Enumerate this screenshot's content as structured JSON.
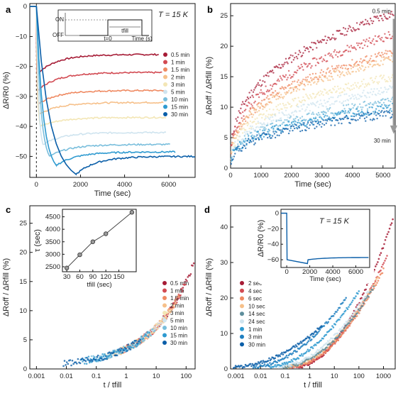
{
  "panel_letters": [
    "a",
    "b",
    "c",
    "d"
  ],
  "chart_data": [
    {
      "panel": "a",
      "type": "line",
      "annotation": "T = 15 K",
      "xlabel": "Time (sec)",
      "ylabel": "ΔR/R0 (%)",
      "xlim": [
        -300,
        7200
      ],
      "ylim": [
        -57,
        1
      ],
      "xticks": [
        0,
        2000,
        4000,
        6000
      ],
      "yticks": [
        0,
        -10,
        -20,
        -30,
        -40,
        -50
      ],
      "legend_position": "right",
      "inset": {
        "ylabels": [
          "ON",
          "OFF"
        ],
        "marks": [
          "t=0",
          "tfill",
          "Time (s)"
        ]
      },
      "series": [
        {
          "name": "0.5 min",
          "color": "#a61b35",
          "final": -16.0,
          "start": -22.5,
          "end": 5600
        },
        {
          "name": "1 min",
          "color": "#d24a52",
          "final": -22.0,
          "start": -28.0,
          "end": 5700
        },
        {
          "name": "1.5 min",
          "color": "#ef8a62",
          "final": -28.0,
          "start": -32.5,
          "end": 5800
        },
        {
          "name": "2 min",
          "color": "#f6c08a",
          "final": -32.0,
          "start": -36.0,
          "end": 5800
        },
        {
          "name": "3 min",
          "color": "#f3e6b5",
          "final": -37.0,
          "start": -40.0,
          "end": 5900
        },
        {
          "name": "5 min",
          "color": "#cfe4ef",
          "final": -42.0,
          "start": -46.0,
          "end": 5900
        },
        {
          "name": "10 min",
          "color": "#79bedc",
          "final": -46.0,
          "start": -50.0,
          "end": 6100
        },
        {
          "name": "15 min",
          "color": "#2e9ad0",
          "final": -48.5,
          "start": -53.0,
          "end": 6300
        },
        {
          "name": "30 min",
          "color": "#0a5ea8",
          "final": -50.0,
          "start": -56.0,
          "end": 7200
        }
      ]
    },
    {
      "panel": "b",
      "type": "scatter",
      "xlabel": "Time (sec)",
      "ylabel": "ΔRoff / ΔRfill (%)",
      "xlim": [
        0,
        5400
      ],
      "ylim": [
        0,
        27
      ],
      "xticks": [
        0,
        1000,
        2000,
        3000,
        4000,
        5000
      ],
      "yticks": [
        0,
        5,
        10,
        15,
        20,
        25
      ],
      "arrow_top": "0.5 min",
      "arrow_bottom": "30 min",
      "series": [
        {
          "name": "0.5 min",
          "color": "#a61b35",
          "final": 25.5
        },
        {
          "name": "1 min",
          "color": "#d24a52",
          "final": 22.0
        },
        {
          "name": "1.5 min",
          "color": "#ef8a62",
          "final": 19.0
        },
        {
          "name": "2 min",
          "color": "#f6c08a",
          "final": 18.0
        },
        {
          "name": "3 min",
          "color": "#f3e6b5",
          "final": 15.0
        },
        {
          "name": "5 min",
          "color": "#cfe4ef",
          "final": 13.0
        },
        {
          "name": "10 min",
          "color": "#79bedc",
          "final": 11.0
        },
        {
          "name": "15 min",
          "color": "#2e9ad0",
          "final": 10.0
        },
        {
          "name": "30 min",
          "color": "#0a5ea8",
          "final": 9.0
        }
      ]
    },
    {
      "panel": "c",
      "type": "scatter",
      "xlabel": "t / tfill",
      "ylabel": "ΔRoff / ΔRfill (%)",
      "xscale": "log",
      "xlim": [
        0.0006,
        200
      ],
      "ylim": [
        0,
        28
      ],
      "xticks": [
        0.001,
        0.01,
        0.1,
        1,
        10,
        100
      ],
      "xticklabels": [
        "0.001",
        "0.01",
        "0.1",
        "1",
        "10",
        "100"
      ],
      "yticks": [
        0,
        5,
        10,
        15,
        20,
        25
      ],
      "legend_position": "lower right",
      "series": [
        {
          "name": "0.5 min",
          "color": "#a61b35"
        },
        {
          "name": "1 min",
          "color": "#d24a52"
        },
        {
          "name": "1.5 min",
          "color": "#ef8a62"
        },
        {
          "name": "2 min",
          "color": "#f6c08a"
        },
        {
          "name": "3 min",
          "color": "#f3e6b5"
        },
        {
          "name": "5 min",
          "color": "#cfe4ef"
        },
        {
          "name": "10 min",
          "color": "#79bedc"
        },
        {
          "name": "15 min",
          "color": "#2e9ad0"
        },
        {
          "name": "30 min",
          "color": "#0a5ea8"
        }
      ],
      "inset": {
        "type": "line",
        "xlabel": "tfill (sec)",
        "ylabel": "τ (sec)",
        "x": [
          30,
          60,
          90,
          120,
          180
        ],
        "y": [
          2450,
          2980,
          3500,
          3820,
          4680
        ],
        "xticks": [
          30,
          60,
          90,
          120,
          150
        ],
        "yticks": [
          2500,
          3000,
          3500,
          4000,
          4500
        ],
        "xlim": [
          20,
          190
        ],
        "ylim": [
          2300,
          4800
        ]
      }
    },
    {
      "panel": "d",
      "type": "scatter",
      "xlabel": "t / tfill",
      "ylabel": "ΔRoff / ΔRfill (%)",
      "xscale": "log",
      "xlim": [
        0.0006,
        3000
      ],
      "ylim": [
        0,
        46
      ],
      "xticks": [
        0.001,
        0.01,
        0.1,
        1,
        10,
        100,
        1000
      ],
      "xticklabels": [
        "0.001",
        "0.01",
        "0.1",
        "1",
        "10",
        "100",
        "1000"
      ],
      "yticks": [
        0,
        10,
        20,
        30,
        40
      ],
      "legend_position": "left",
      "series": [
        {
          "name": "2 sec",
          "color": "#a61b35",
          "xmin": 0.3,
          "xmax": 2400,
          "ymax": 42
        },
        {
          "name": "4 sec",
          "color": "#d24a52",
          "xmin": 0.2,
          "xmax": 1400,
          "ymax": 32
        },
        {
          "name": "6 sec",
          "color": "#ef8a62",
          "xmin": 0.15,
          "xmax": 1000,
          "ymax": 28
        },
        {
          "name": "10 sec",
          "color": "#f6c08a",
          "xmin": 0.1,
          "xmax": 600,
          "ymax": 26
        },
        {
          "name": "14 sec",
          "color": "#5e8e9c",
          "xmin": 0.08,
          "xmax": 400,
          "ymax": 23
        },
        {
          "name": "24 sec",
          "color": "#cfe4ef",
          "xmin": 0.05,
          "xmax": 250,
          "ymax": 22
        },
        {
          "name": "1 min",
          "color": "#2e9ad0",
          "xmin": 0.02,
          "xmax": 100,
          "ymax": 22
        },
        {
          "name": "3 min",
          "color": "#1f7fc0",
          "xmin": 0.005,
          "xmax": 30,
          "ymax": 20
        },
        {
          "name": "30 min",
          "color": "#0a5ea8",
          "xmin": 0.0008,
          "xmax": 3,
          "ymax": 12
        }
      ],
      "inset": {
        "type": "line",
        "annotation": "T = 15 K",
        "xlabel": "Time (sec)",
        "ylabel": "ΔR/R0 (%)",
        "xlim": [
          -500,
          7200
        ],
        "ylim": [
          -70,
          5
        ],
        "xticks": [
          0,
          2000,
          4000,
          6000
        ],
        "yticks": [
          0,
          -20,
          -40,
          -60
        ],
        "color": "#0a5ea8"
      }
    }
  ]
}
